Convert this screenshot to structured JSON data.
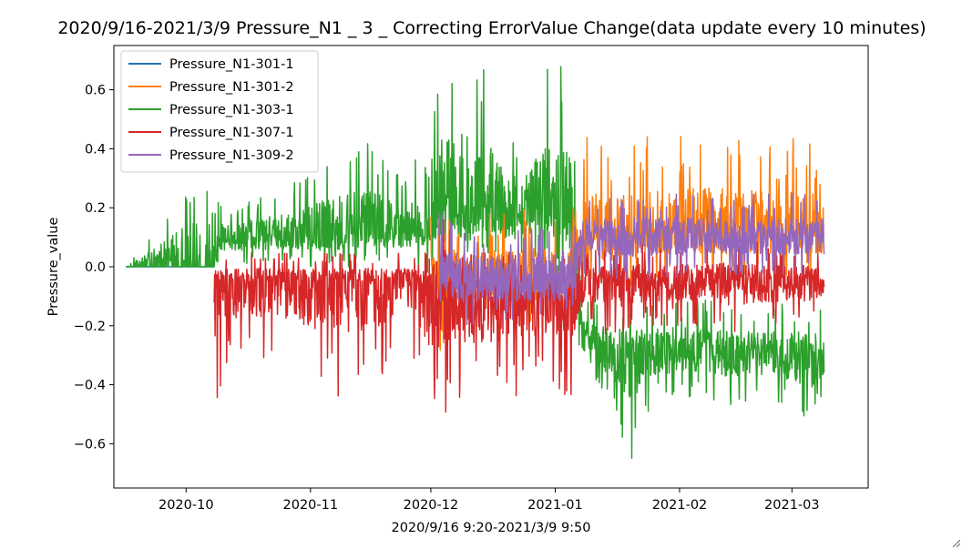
{
  "chart_data": {
    "type": "line",
    "title": "2020/9/16-2021/3/9  Pressure_N1 _ 3 _ Correcting ErrorValue Change(data update every 10 minutes)",
    "xlabel": "2020/9/16 9:20-2021/3/9 9:50",
    "ylabel": "Pressure_value",
    "xlim": [
      "2020-09-13",
      "2021-03-20"
    ],
    "ylim": [
      -0.75,
      0.75
    ],
    "x_ticks": [
      {
        "date": "2020-10-01",
        "label": "2020-10"
      },
      {
        "date": "2020-11-01",
        "label": "2020-11"
      },
      {
        "date": "2020-12-01",
        "label": "2020-12"
      },
      {
        "date": "2021-01-01",
        "label": "2021-01"
      },
      {
        "date": "2021-02-01",
        "label": "2021-02"
      },
      {
        "date": "2021-03-01",
        "label": "2021-03"
      }
    ],
    "y_ticks": [
      {
        "value": 0.6,
        "label": "0.6"
      },
      {
        "value": 0.4,
        "label": "0.4"
      },
      {
        "value": 0.2,
        "label": "0.2"
      },
      {
        "value": 0.0,
        "label": "0.0"
      },
      {
        "value": -0.2,
        "label": "−0.2"
      },
      {
        "value": -0.4,
        "label": "−0.4"
      },
      {
        "value": -0.6,
        "label": "−0.6"
      }
    ],
    "grid": false,
    "legend_position": "top-left",
    "series": [
      {
        "name": "Pressure_N1-301-1",
        "color": "#1f77b4",
        "x": [
          "2020-09-16",
          "2020-10-08"
        ],
        "y": [
          0.0,
          0.0
        ],
        "upper": [
          0.0,
          0.0
        ],
        "lower": [
          0.0,
          0.0
        ]
      },
      {
        "name": "Pressure_N1-301-2",
        "color": "#ff7f0e",
        "x": [
          "2020-12-01",
          "2020-12-03",
          "2020-12-06",
          "2020-12-10",
          "2020-12-15",
          "2020-12-20",
          "2020-12-25",
          "2020-12-30",
          "2021-01-04",
          "2021-01-06",
          "2021-01-09",
          "2021-01-15",
          "2021-01-25",
          "2021-02-05",
          "2021-02-15",
          "2021-02-25",
          "2021-03-05",
          "2021-03-09"
        ],
        "y": [
          -0.05,
          -0.1,
          -0.05,
          -0.05,
          -0.05,
          -0.05,
          -0.05,
          -0.05,
          -0.05,
          0.08,
          0.1,
          0.1,
          0.1,
          0.12,
          0.12,
          0.12,
          0.12,
          0.12
        ],
        "upper": [
          0.2,
          0.15,
          0.2,
          0.15,
          0.2,
          0.2,
          0.2,
          0.2,
          0.15,
          0.25,
          0.46,
          0.4,
          0.45,
          0.45,
          0.45,
          0.4,
          0.47,
          0.3
        ],
        "lower": [
          -0.32,
          -0.3,
          -0.2,
          -0.18,
          -0.2,
          -0.2,
          -0.2,
          -0.2,
          -0.3,
          -0.2,
          -0.05,
          -0.1,
          -0.05,
          -0.05,
          -0.05,
          -0.05,
          -0.05,
          -0.05
        ]
      },
      {
        "name": "Pressure_N1-303-1",
        "color": "#2ca02c",
        "x": [
          "2020-09-16",
          "2020-10-08",
          "2020-10-10",
          "2020-10-20",
          "2020-10-30",
          "2020-11-05",
          "2020-11-15",
          "2020-11-25",
          "2020-12-01",
          "2020-12-05",
          "2020-12-10",
          "2020-12-15",
          "2020-12-20",
          "2020-12-25",
          "2020-12-30",
          "2021-01-05",
          "2021-01-08",
          "2021-01-15",
          "2021-01-20",
          "2021-01-25",
          "2021-02-05",
          "2021-02-15",
          "2021-02-25",
          "2021-03-05",
          "2021-03-09"
        ],
        "y": [
          0.0,
          0.0,
          0.1,
          0.1,
          0.1,
          0.1,
          0.12,
          0.12,
          0.15,
          0.25,
          0.15,
          0.2,
          0.15,
          0.2,
          0.2,
          0.15,
          -0.25,
          -0.3,
          -0.3,
          -0.3,
          -0.28,
          -0.3,
          -0.3,
          -0.3,
          -0.3
        ],
        "upper": [
          0.0,
          0.45,
          0.2,
          0.25,
          0.3,
          0.4,
          0.45,
          0.3,
          0.7,
          0.7,
          0.6,
          0.7,
          0.5,
          0.45,
          0.72,
          0.7,
          -0.1,
          -0.1,
          -0.1,
          -0.1,
          -0.1,
          -0.12,
          -0.12,
          -0.12,
          -0.13
        ],
        "lower": [
          0.0,
          0.0,
          0.0,
          0.0,
          0.0,
          0.0,
          0.0,
          0.0,
          -0.05,
          0.0,
          0.0,
          0.0,
          0.0,
          0.0,
          0.0,
          -0.1,
          -0.4,
          -0.45,
          -0.7,
          -0.45,
          -0.45,
          -0.47,
          -0.45,
          -0.57,
          -0.45
        ]
      },
      {
        "name": "Pressure_N1-307-1",
        "color": "#d62728",
        "x": [
          "2020-10-08",
          "2020-10-15",
          "2020-10-25",
          "2020-11-05",
          "2020-11-15",
          "2020-11-25",
          "2020-12-01",
          "2020-12-03",
          "2020-12-10",
          "2020-12-20",
          "2020-12-30",
          "2021-01-05",
          "2021-01-08",
          "2021-01-15",
          "2021-01-25",
          "2021-02-05",
          "2021-02-15",
          "2021-02-25",
          "2021-03-05",
          "2021-03-09"
        ],
        "y": [
          -0.05,
          -0.05,
          -0.05,
          -0.05,
          -0.05,
          -0.05,
          -0.08,
          -0.05,
          -0.1,
          -0.1,
          -0.1,
          -0.1,
          -0.05,
          -0.05,
          -0.05,
          -0.05,
          -0.05,
          -0.05,
          -0.05,
          -0.05
        ],
        "upper": [
          0.05,
          0.05,
          0.05,
          0.05,
          0.05,
          0.05,
          0.05,
          0.25,
          0.05,
          0.05,
          0.05,
          0.05,
          0.05,
          0.08,
          0.08,
          0.08,
          0.1,
          0.08,
          0.08,
          0.05
        ],
        "lower": [
          -0.47,
          -0.3,
          -0.35,
          -0.45,
          -0.42,
          -0.3,
          -0.52,
          -0.55,
          -0.45,
          -0.45,
          -0.4,
          -0.45,
          -0.2,
          -0.25,
          -0.2,
          -0.2,
          -0.25,
          -0.2,
          -0.2,
          -0.15
        ]
      },
      {
        "name": "Pressure_N1-309-2",
        "color": "#9467bd",
        "x": [
          "2020-12-03",
          "2020-12-10",
          "2020-12-20",
          "2020-12-30",
          "2021-01-05",
          "2021-01-08",
          "2021-01-15",
          "2021-01-25",
          "2021-02-05",
          "2021-02-15",
          "2021-02-25",
          "2021-03-05",
          "2021-03-09"
        ],
        "y": [
          -0.05,
          -0.05,
          -0.05,
          -0.05,
          -0.05,
          0.1,
          0.1,
          0.1,
          0.1,
          0.1,
          0.1,
          0.1,
          0.1
        ],
        "upper": [
          0.2,
          0.15,
          0.15,
          0.15,
          0.2,
          0.25,
          0.25,
          0.25,
          0.25,
          0.25,
          0.25,
          0.25,
          0.25
        ],
        "lower": [
          -0.2,
          -0.2,
          -0.2,
          -0.2,
          -0.2,
          -0.05,
          -0.05,
          -0.05,
          -0.03,
          -0.03,
          -0.03,
          -0.03,
          -0.03
        ]
      }
    ]
  }
}
